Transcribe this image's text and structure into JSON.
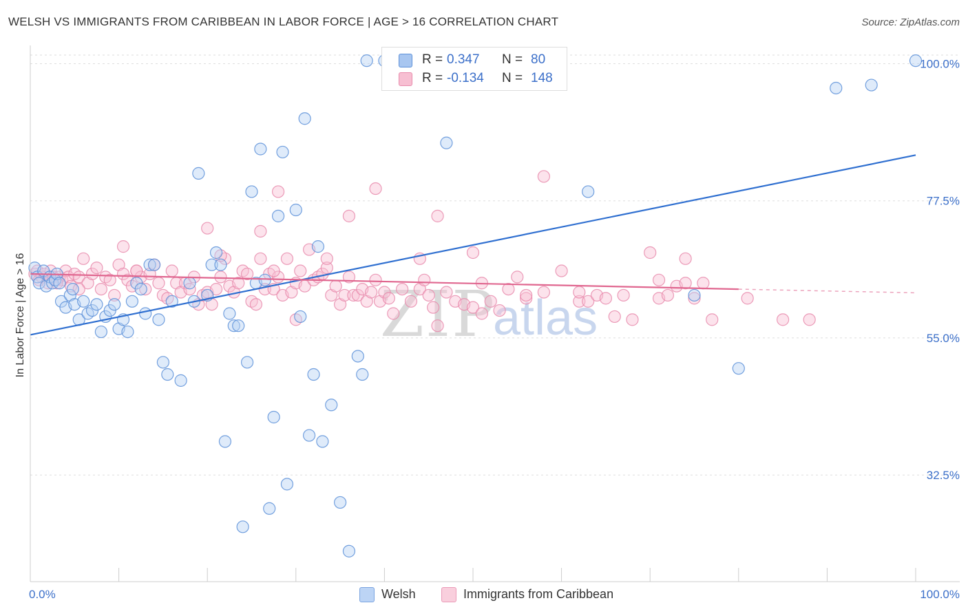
{
  "title": "WELSH VS IMMIGRANTS FROM CARIBBEAN IN LABOR FORCE | AGE > 16 CORRELATION CHART",
  "source": "Source: ZipAtlas.com",
  "watermark": {
    "zip": "ZIP",
    "atlas": "atlas"
  },
  "legend": {
    "rows": [
      {
        "r_label": "R =",
        "r_value": "0.347",
        "n_label": "N =",
        "n_value": "80",
        "color": "#a8c6f0",
        "border": "#5b8fd8"
      },
      {
        "r_label": "R =",
        "r_value": "-0.134",
        "n_label": "N =",
        "n_value": "148",
        "color": "#f7bfd2",
        "border": "#e88aab"
      }
    ]
  },
  "bottom_legend": [
    {
      "label": "Welsh",
      "color": "#bcd4f5",
      "border": "#7aa3e0"
    },
    {
      "label": "Immigrants from Caribbean",
      "color": "#f9cfdd",
      "border": "#eb9ab8"
    }
  ],
  "chart_data": {
    "type": "scatter",
    "xlabel": "",
    "ylabel": "In Labor Force | Age > 16",
    "xlim": [
      0,
      100
    ],
    "ylim": [
      15,
      103
    ],
    "x_tick_labels": [
      "0.0%",
      "100.0%"
    ],
    "y_ticks": [
      32.5,
      55.0,
      77.5,
      100.0
    ],
    "y_tick_labels": [
      "32.5%",
      "55.0%",
      "77.5%",
      "100.0%"
    ],
    "grid": true,
    "colors": {
      "welsh": "#5b8fd8",
      "caribbean": "#e88aab",
      "welsh_line": "#2f6fd0",
      "caribbean_line": "#e0668f"
    },
    "series": [
      {
        "name": "Welsh",
        "trend": {
          "x": [
            0,
            100
          ],
          "y": [
            55.5,
            85.0
          ]
        },
        "points": [
          [
            0.5,
            66.5
          ],
          [
            0.8,
            65
          ],
          [
            1,
            64
          ],
          [
            1.5,
            66
          ],
          [
            1.8,
            63.5
          ],
          [
            2.2,
            65
          ],
          [
            2.5,
            64
          ],
          [
            2.8,
            64.5
          ],
          [
            3,
            65.5
          ],
          [
            3.3,
            64
          ],
          [
            3.5,
            61
          ],
          [
            4,
            60
          ],
          [
            4.5,
            62
          ],
          [
            4.8,
            63
          ],
          [
            5,
            60.5
          ],
          [
            5.5,
            58
          ],
          [
            6,
            61
          ],
          [
            6.5,
            59
          ],
          [
            7,
            59.5
          ],
          [
            7.5,
            60.5
          ],
          [
            8,
            56
          ],
          [
            8.5,
            58.5
          ],
          [
            9,
            59.5
          ],
          [
            9.5,
            60.5
          ],
          [
            10,
            56.5
          ],
          [
            10.5,
            58
          ],
          [
            11,
            56
          ],
          [
            11.5,
            61
          ],
          [
            12,
            64
          ],
          [
            12.5,
            63
          ],
          [
            13,
            59
          ],
          [
            13.5,
            67
          ],
          [
            14,
            67
          ],
          [
            14.5,
            58
          ],
          [
            15,
            51
          ],
          [
            15.5,
            49
          ],
          [
            16,
            61
          ],
          [
            17,
            48
          ],
          [
            18,
            64
          ],
          [
            18.5,
            61
          ],
          [
            19,
            82
          ],
          [
            20,
            62
          ],
          [
            20.5,
            67
          ],
          [
            21,
            69
          ],
          [
            21.5,
            67
          ],
          [
            22,
            38
          ],
          [
            22.5,
            59
          ],
          [
            23,
            57
          ],
          [
            23.5,
            57
          ],
          [
            24,
            24
          ],
          [
            24.5,
            51
          ],
          [
            25,
            79
          ],
          [
            25.5,
            64
          ],
          [
            26,
            86
          ],
          [
            26.5,
            64.5
          ],
          [
            27,
            27
          ],
          [
            27.5,
            42
          ],
          [
            28,
            75
          ],
          [
            28.5,
            85.5
          ],
          [
            29,
            31
          ],
          [
            30,
            76
          ],
          [
            30.5,
            58.5
          ],
          [
            31,
            91
          ],
          [
            31.5,
            39
          ],
          [
            32,
            49
          ],
          [
            32.5,
            70
          ],
          [
            33,
            38
          ],
          [
            34,
            44
          ],
          [
            35,
            28
          ],
          [
            36,
            20
          ],
          [
            37,
            52
          ],
          [
            37.5,
            49
          ],
          [
            38,
            100.5
          ],
          [
            40,
            100.5
          ],
          [
            47,
            87
          ],
          [
            55,
            100.5
          ],
          [
            63,
            79
          ],
          [
            75,
            62
          ],
          [
            80,
            50
          ],
          [
            91,
            96
          ],
          [
            95,
            96.5
          ],
          [
            100,
            100.5
          ]
        ]
      },
      {
        "name": "Immigrants from Caribbean",
        "trend": {
          "x": [
            0,
            80
          ],
          "y": [
            65.5,
            63.0
          ]
        },
        "trend_dashed": {
          "x": [
            80,
            100
          ],
          "y": [
            63.0,
            62.4
          ]
        },
        "points": [
          [
            0.5,
            65.5
          ],
          [
            0.8,
            66
          ],
          [
            1,
            64.5
          ],
          [
            1.3,
            65
          ],
          [
            1.6,
            65.5
          ],
          [
            2,
            64
          ],
          [
            2.3,
            66
          ],
          [
            2.6,
            65
          ],
          [
            3,
            64.5
          ],
          [
            3.3,
            65
          ],
          [
            3.6,
            64.5
          ],
          [
            4,
            66
          ],
          [
            4.3,
            65
          ],
          [
            4.6,
            63.5
          ],
          [
            5,
            65.5
          ],
          [
            5.5,
            65
          ],
          [
            6,
            68
          ],
          [
            6.5,
            64
          ],
          [
            7,
            65.5
          ],
          [
            7.5,
            66.5
          ],
          [
            8,
            63
          ],
          [
            8.5,
            65
          ],
          [
            9,
            64.5
          ],
          [
            9.5,
            62
          ],
          [
            10,
            67
          ],
          [
            10.5,
            65.5
          ],
          [
            11,
            64.5
          ],
          [
            11.5,
            63.5
          ],
          [
            12,
            66
          ],
          [
            12.5,
            65
          ],
          [
            13,
            63
          ],
          [
            13.5,
            65.5
          ],
          [
            14,
            67
          ],
          [
            14.5,
            64
          ],
          [
            15,
            62
          ],
          [
            15.5,
            61.5
          ],
          [
            16,
            66
          ],
          [
            16.5,
            64
          ],
          [
            17,
            62.5
          ],
          [
            17.5,
            64
          ],
          [
            18,
            63
          ],
          [
            18.5,
            65
          ],
          [
            19,
            60.5
          ],
          [
            19.5,
            62
          ],
          [
            20,
            62.5
          ],
          [
            20.5,
            60.5
          ],
          [
            21,
            63
          ],
          [
            21.5,
            65
          ],
          [
            22,
            68
          ],
          [
            22.5,
            63.5
          ],
          [
            23,
            62.5
          ],
          [
            23.5,
            64
          ],
          [
            24,
            66
          ],
          [
            24.5,
            65.5
          ],
          [
            25,
            61
          ],
          [
            25.5,
            60.5
          ],
          [
            26,
            72.5
          ],
          [
            26.5,
            63
          ],
          [
            27,
            65.5
          ],
          [
            27.5,
            63
          ],
          [
            28,
            65
          ],
          [
            28.5,
            62
          ],
          [
            29,
            68
          ],
          [
            29.5,
            62.5
          ],
          [
            30,
            64
          ],
          [
            30.5,
            66
          ],
          [
            31,
            63.5
          ],
          [
            31.5,
            69.5
          ],
          [
            32,
            64.5
          ],
          [
            32.5,
            65
          ],
          [
            33,
            65.5
          ],
          [
            33.5,
            66.5
          ],
          [
            34,
            62
          ],
          [
            34.5,
            63.5
          ],
          [
            35,
            60.5
          ],
          [
            35.5,
            62
          ],
          [
            36,
            65
          ],
          [
            36.5,
            62
          ],
          [
            37,
            62
          ],
          [
            37.5,
            63
          ],
          [
            38,
            61
          ],
          [
            38.5,
            62.5
          ],
          [
            39,
            64.5
          ],
          [
            39.5,
            61
          ],
          [
            40,
            62.5
          ],
          [
            40.5,
            61.5
          ],
          [
            41,
            59
          ],
          [
            42,
            63
          ],
          [
            43,
            61
          ],
          [
            44,
            63
          ],
          [
            45,
            62
          ],
          [
            45.5,
            60
          ],
          [
            46,
            57
          ],
          [
            47,
            62.5
          ],
          [
            48,
            61
          ],
          [
            49,
            60.5
          ],
          [
            50,
            60
          ],
          [
            51,
            59
          ],
          [
            52,
            61
          ],
          [
            53,
            59.5
          ],
          [
            54,
            63
          ],
          [
            55,
            65
          ],
          [
            56,
            61.5
          ],
          [
            58,
            62.5
          ],
          [
            60,
            66
          ],
          [
            62,
            61
          ],
          [
            63,
            61
          ],
          [
            64,
            62
          ],
          [
            65,
            61.5
          ],
          [
            66,
            58.5
          ],
          [
            67,
            62
          ],
          [
            68,
            58
          ],
          [
            70,
            69
          ],
          [
            71,
            61.5
          ],
          [
            72,
            62
          ],
          [
            73,
            63.5
          ],
          [
            74,
            68
          ],
          [
            75,
            61.5
          ],
          [
            76,
            64
          ],
          [
            77,
            58
          ],
          [
            28,
            79
          ],
          [
            39,
            79.5
          ],
          [
            46,
            75
          ],
          [
            58,
            81.5
          ],
          [
            20,
            73
          ],
          [
            36,
            75
          ],
          [
            26,
            68
          ],
          [
            21.5,
            68.5
          ],
          [
            10.5,
            70
          ],
          [
            50,
            69
          ],
          [
            44,
            68
          ],
          [
            3,
            64
          ],
          [
            5.5,
            63
          ],
          [
            12,
            66
          ],
          [
            27.5,
            66
          ],
          [
            33.5,
            68
          ],
          [
            44.5,
            64.5
          ],
          [
            51,
            64
          ],
          [
            30,
            58
          ],
          [
            56,
            62
          ],
          [
            62,
            62.5
          ],
          [
            71,
            64.5
          ],
          [
            74,
            64
          ],
          [
            81,
            61.5
          ],
          [
            85,
            58
          ],
          [
            88,
            58
          ]
        ]
      }
    ]
  }
}
